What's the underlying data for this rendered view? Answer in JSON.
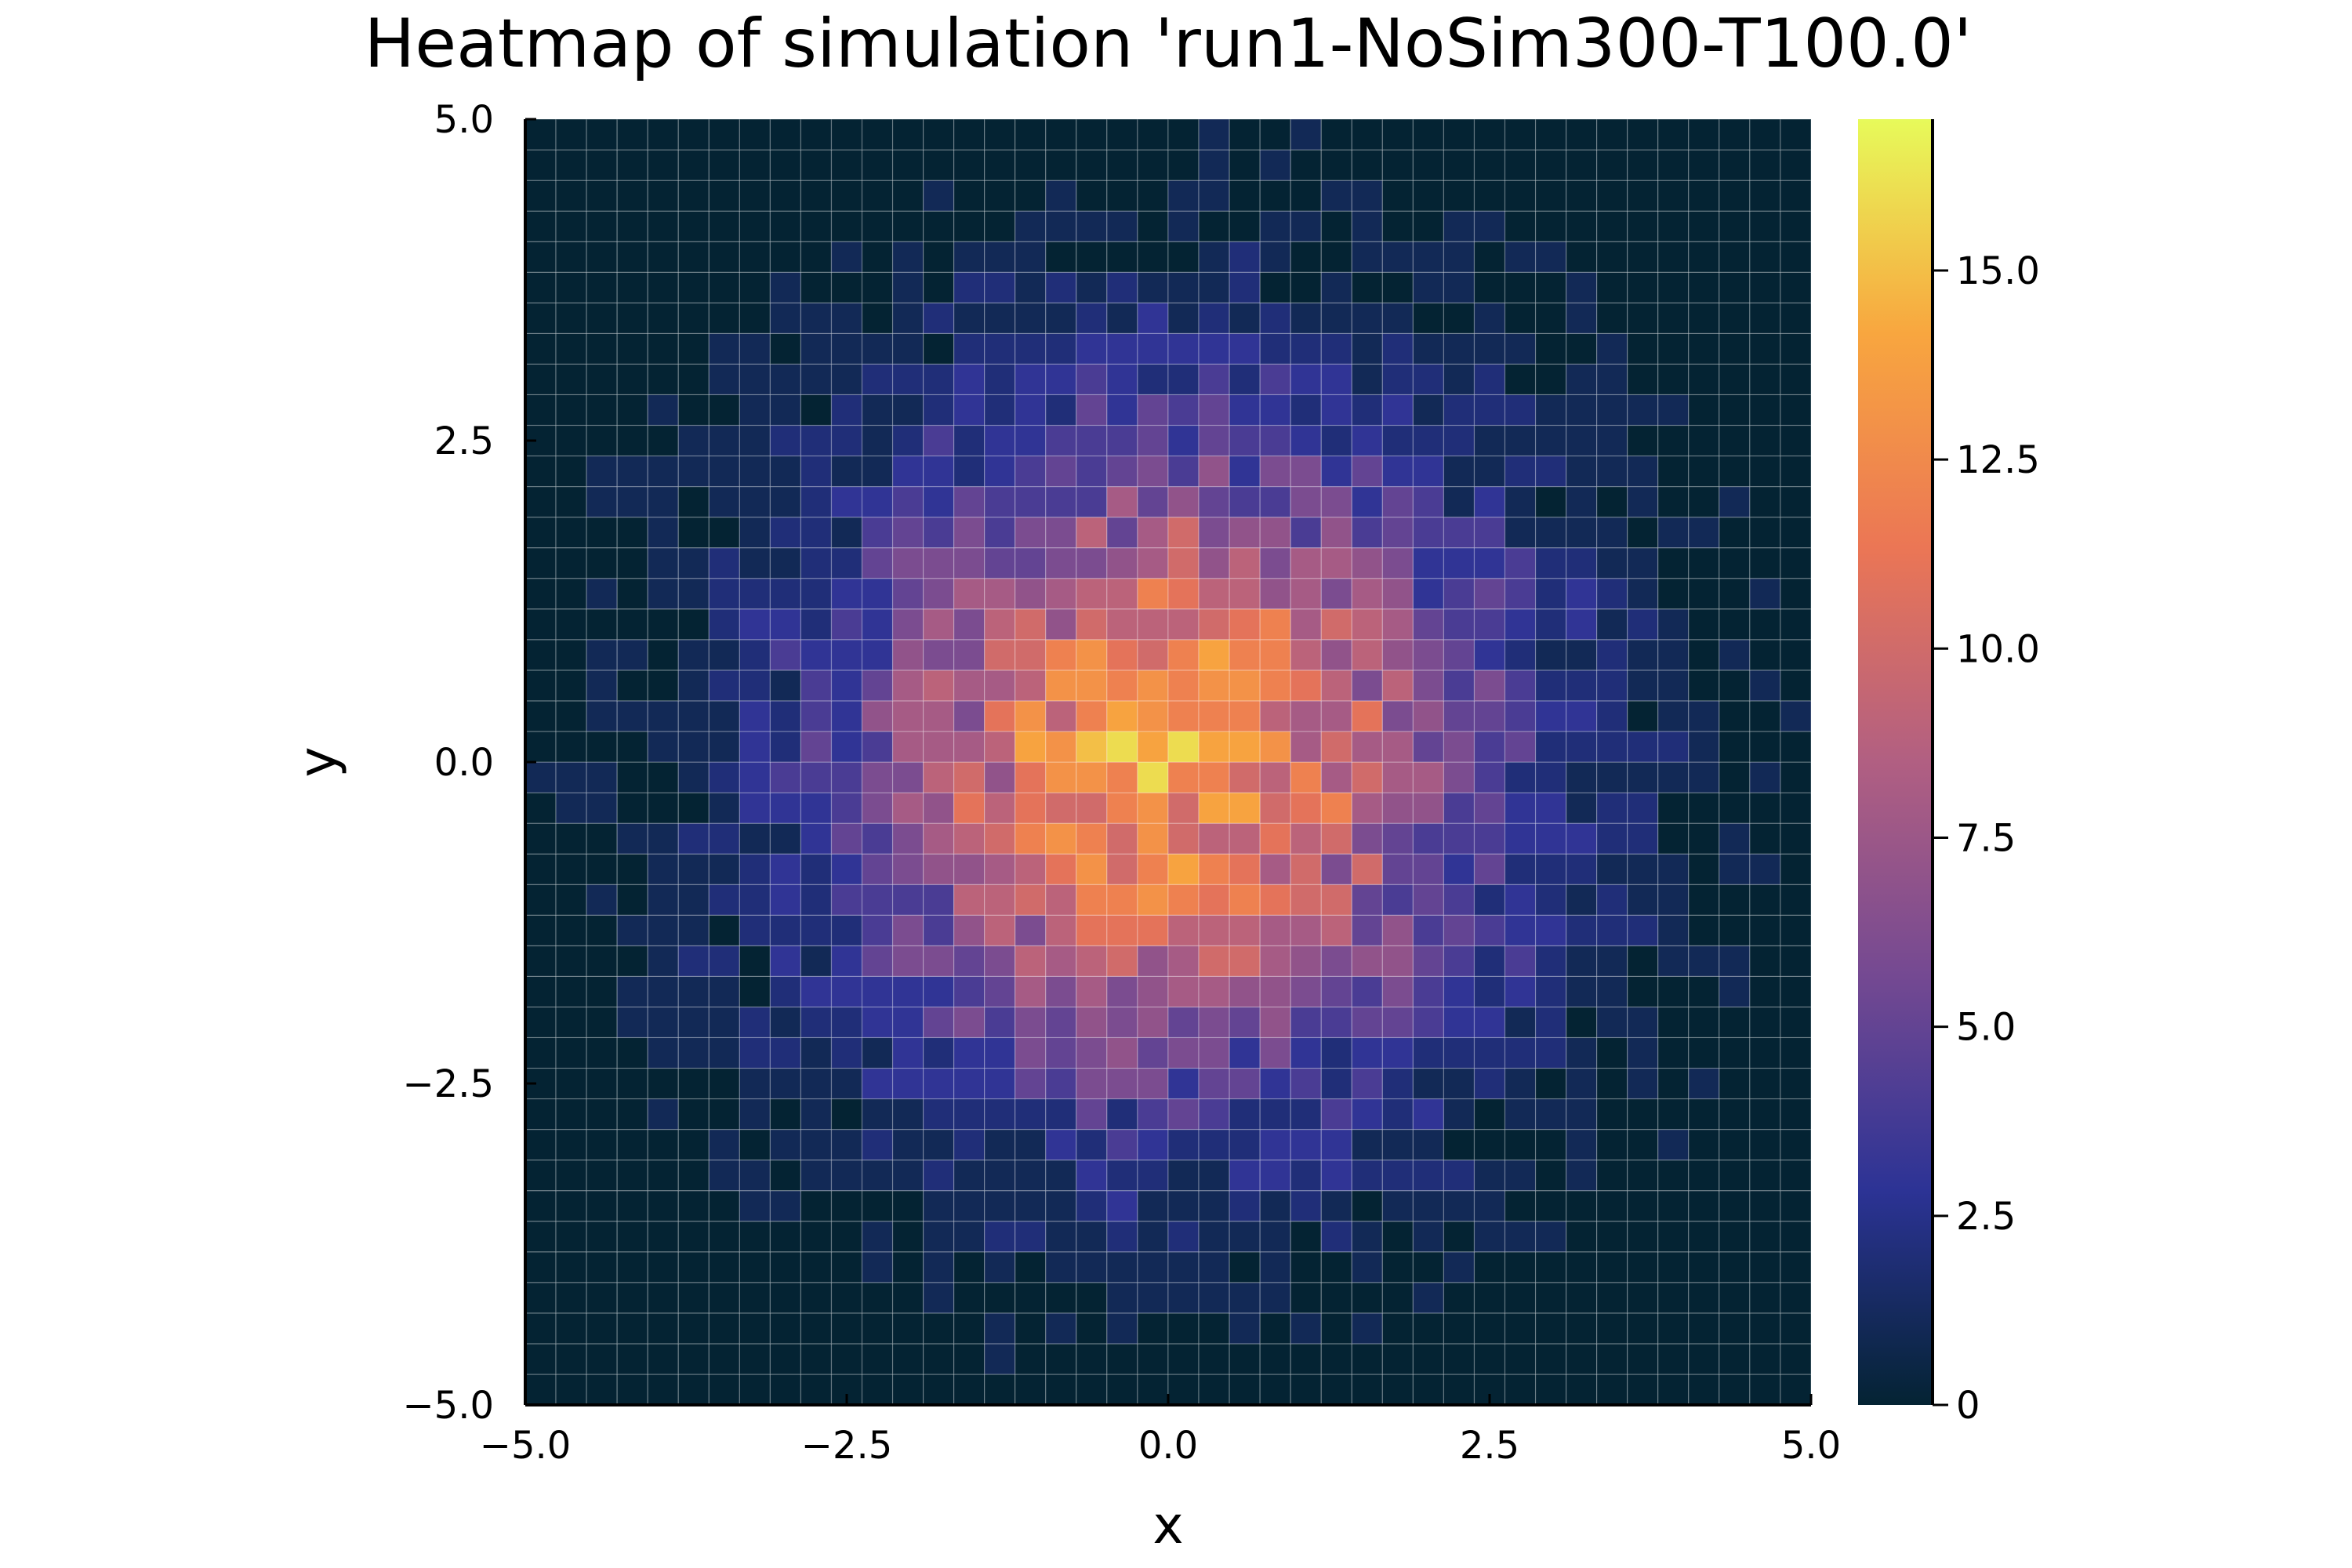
{
  "chart_data": {
    "type": "heatmap",
    "title": "Heatmap of simulation 'run1-NoSim300-T100.0'",
    "xlabel": "x",
    "ylabel": "y",
    "xlim": [
      -5.0,
      5.0
    ],
    "ylim": [
      -5.0,
      5.0
    ],
    "x_ticks": [
      -5.0,
      -2.5,
      0.0,
      2.5,
      5.0
    ],
    "x_tick_labels": [
      "−5.0",
      "−2.5",
      "0.0",
      "2.5",
      "5.0"
    ],
    "y_ticks": [
      -5.0,
      -2.5,
      0.0,
      2.5,
      5.0
    ],
    "y_tick_labels": [
      "−5.0",
      "−2.5",
      "0.0",
      "2.5",
      "5.0"
    ],
    "colorbar": {
      "range": [
        0,
        17
      ],
      "ticks": [
        0,
        2.5,
        5.0,
        7.5,
        10.0,
        12.5,
        15.0
      ],
      "tick_labels": [
        "0",
        "2.5",
        "5.0",
        "7.5",
        "10.0",
        "12.5",
        "15.0"
      ],
      "colormap": "thermal",
      "stops": [
        "#042333",
        "#2c3395",
        "#744992",
        "#b15f82",
        "#eb7655",
        "#f8a63f",
        "#e7fa5a"
      ]
    },
    "grid": {
      "bins_x": 42,
      "bins_y": 42,
      "center": [
        0.0,
        0.0
      ],
      "spread": 1.7,
      "peak_count": 17
    }
  }
}
